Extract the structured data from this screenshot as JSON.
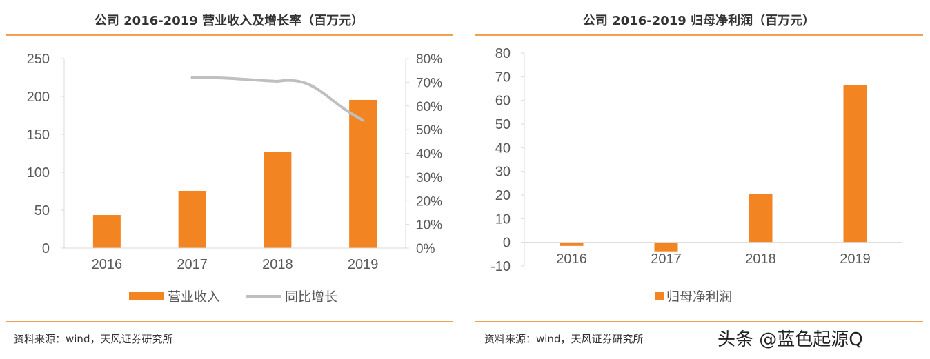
{
  "charts": [
    {
      "title": "公司 2016-2019 营业收入及增长率（百万元）",
      "source": "资料来源：wind，天风证券研究所"
    },
    {
      "title": "公司 2016-2019 归母净利润（百万元）",
      "source": "资料来源：wind，天风证券研究所"
    }
  ],
  "watermark": "头条 @蓝色起源Q",
  "chart_data": [
    {
      "type": "bar+line",
      "categories": [
        "2016",
        "2017",
        "2018",
        "2019"
      ],
      "series": [
        {
          "name": "营业收入",
          "type": "bar",
          "axis": "left",
          "values": [
            43.6,
            75.5,
            127,
            195.5
          ],
          "color": "#f28522"
        },
        {
          "name": "同比增长",
          "type": "line",
          "axis": "right",
          "values": [
            null,
            72,
            70.4,
            54
          ],
          "color": "#bfbfbf"
        }
      ],
      "ylim": [
        0,
        250
      ],
      "yticks": [
        "0",
        "50",
        "100",
        "150",
        "200",
        "250"
      ],
      "y2lim": [
        0,
        80
      ],
      "y2ticks": [
        "0%",
        "10%",
        "20%",
        "30%",
        "40%",
        "50%",
        "60%",
        "70%",
        "80%"
      ],
      "legend": "bottom",
      "grid": false
    },
    {
      "type": "bar",
      "categories": [
        "2016",
        "2017",
        "2018",
        "2019"
      ],
      "series": [
        {
          "name": "归母净利润",
          "values": [
            -1.5,
            -3.8,
            20.3,
            66.6
          ],
          "color": "#f28522"
        }
      ],
      "ylim": [
        -10,
        80
      ],
      "yticks": [
        "-10",
        "0",
        "10",
        "20",
        "30",
        "40",
        "50",
        "60",
        "70",
        "80"
      ],
      "legend": "bottom",
      "grid": false
    }
  ]
}
